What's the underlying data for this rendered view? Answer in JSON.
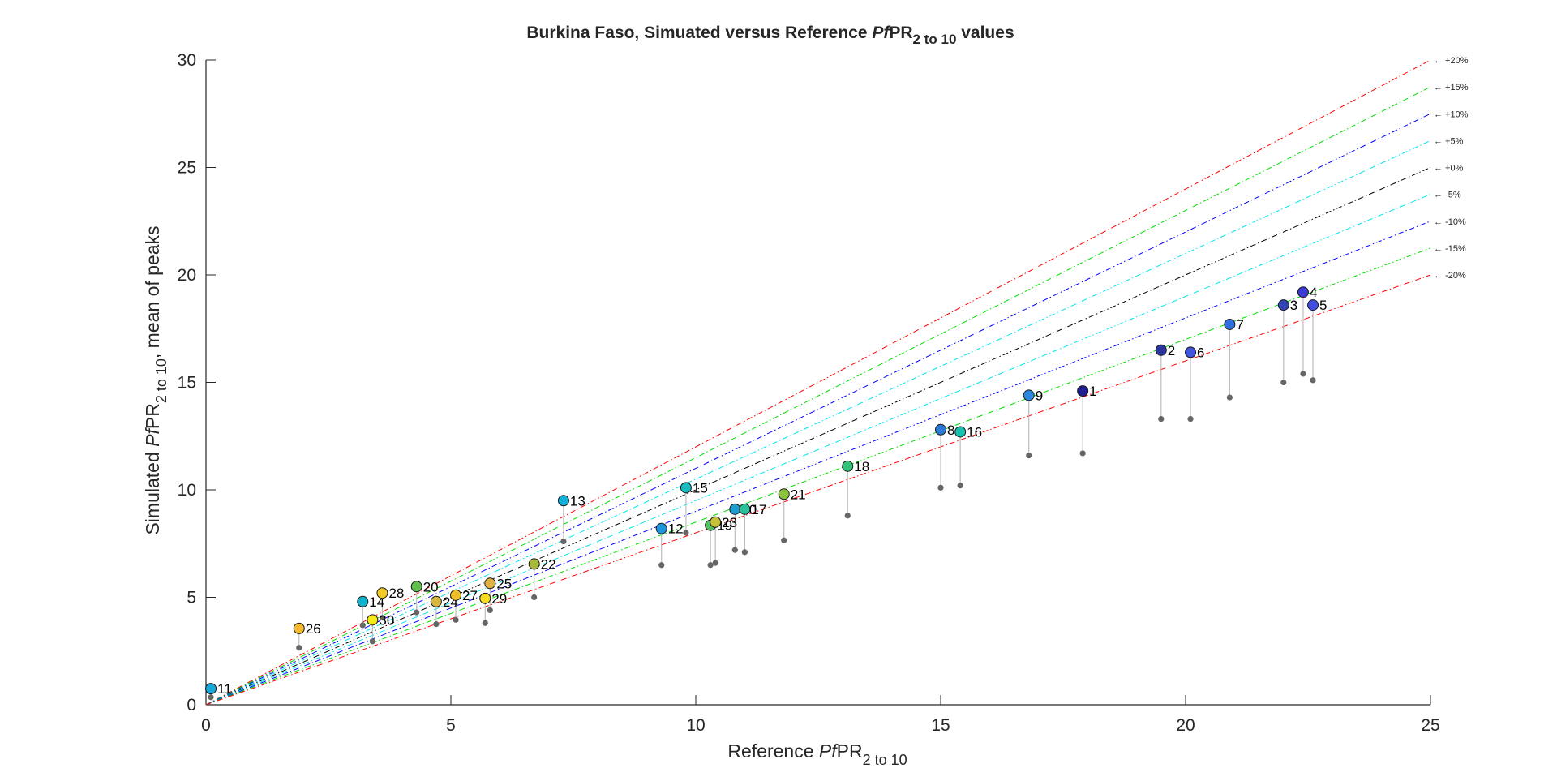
{
  "chart_data": {
    "type": "scatter",
    "title_main": "Burkina Faso, Simuated versus Reference ",
    "title_italic": "Pf",
    "title_pr": "PR",
    "title_sub": "2 to 10",
    "title_end": " values",
    "xlabel_main": "Reference  ",
    "xlabel_italic": "Pf",
    "xlabel_pr": "PR",
    "xlabel_sub": "2 to 10",
    "ylabel_main": "Simulated  ",
    "ylabel_italic": "Pf",
    "ylabel_pr": "PR",
    "ylabel_sub": "2 to 10",
    "ylabel_end": ", mean of peaks",
    "xlim": [
      0,
      25
    ],
    "ylim": [
      0,
      30
    ],
    "xticks": [
      0,
      5,
      10,
      15,
      20,
      25
    ],
    "yticks": [
      0,
      5,
      10,
      15,
      20,
      25,
      30
    ],
    "grid": false,
    "reference_lines": [
      {
        "label": "← +20%",
        "factor": 1.2,
        "color": "#ff0000"
      },
      {
        "label": "← +15%",
        "factor": 1.15,
        "color": "#00dd00"
      },
      {
        "label": "← +10%",
        "factor": 1.1,
        "color": "#0000ff"
      },
      {
        "label": "← +5%",
        "factor": 1.05,
        "color": "#00e5ee"
      },
      {
        "label": "← +0%",
        "factor": 1.0,
        "color": "#000000"
      },
      {
        "label": "← -5%",
        "factor": 0.95,
        "color": "#00e5ee"
      },
      {
        "label": "← -10%",
        "factor": 0.9,
        "color": "#0000ff"
      },
      {
        "label": "← -15%",
        "factor": 0.85,
        "color": "#00dd00"
      },
      {
        "label": "← -20%",
        "factor": 0.8,
        "color": "#ff0000"
      }
    ],
    "points": [
      {
        "id": "1",
        "x": 17.9,
        "y": 14.6,
        "y_low": 11.7,
        "color": "#1f1f8f"
      },
      {
        "id": "2",
        "x": 19.5,
        "y": 16.5,
        "y_low": 13.3,
        "color": "#2a35a0"
      },
      {
        "id": "3",
        "x": 22.0,
        "y": 18.6,
        "y_low": 15.0,
        "color": "#3344b8"
      },
      {
        "id": "4",
        "x": 22.4,
        "y": 19.2,
        "y_low": 15.4,
        "color": "#3a3ad8"
      },
      {
        "id": "5",
        "x": 22.6,
        "y": 18.6,
        "y_low": 15.1,
        "color": "#3f4ee0"
      },
      {
        "id": "6",
        "x": 20.1,
        "y": 16.4,
        "y_low": 13.3,
        "color": "#3f55dd"
      },
      {
        "id": "7",
        "x": 20.9,
        "y": 17.7,
        "y_low": 14.3,
        "color": "#2f6fe0"
      },
      {
        "id": "8",
        "x": 15.0,
        "y": 12.8,
        "y_low": 10.1,
        "color": "#2c7ad8"
      },
      {
        "id": "9",
        "x": 16.8,
        "y": 14.4,
        "y_low": 11.6,
        "color": "#2a88e0"
      },
      {
        "id": "10",
        "x": 10.8,
        "y": 9.1,
        "y_low": 7.2,
        "color": "#1e9dd0"
      },
      {
        "id": "11",
        "x": 0.1,
        "y": 0.75,
        "y_low": 0.35,
        "color": "#1aa7d8"
      },
      {
        "id": "12",
        "x": 9.3,
        "y": 8.2,
        "y_low": 6.5,
        "color": "#1e96dc"
      },
      {
        "id": "13",
        "x": 7.3,
        "y": 9.5,
        "y_low": 7.6,
        "color": "#14b0dc"
      },
      {
        "id": "14",
        "x": 3.2,
        "y": 4.8,
        "y_low": 3.7,
        "color": "#12b4cc"
      },
      {
        "id": "15",
        "x": 9.8,
        "y": 10.1,
        "y_low": 8.0,
        "color": "#16bcc0"
      },
      {
        "id": "16",
        "x": 15.4,
        "y": 12.7,
        "y_low": 10.2,
        "color": "#18c0b0"
      },
      {
        "id": "17",
        "x": 11.0,
        "y": 9.1,
        "y_low": 7.1,
        "color": "#2ac09a"
      },
      {
        "id": "18",
        "x": 13.1,
        "y": 11.1,
        "y_low": 8.8,
        "color": "#34c27a"
      },
      {
        "id": "19",
        "x": 10.3,
        "y": 8.35,
        "y_low": 6.5,
        "color": "#52c060"
      },
      {
        "id": "20",
        "x": 4.3,
        "y": 5.5,
        "y_low": 4.3,
        "color": "#5ec04a"
      },
      {
        "id": "21",
        "x": 11.8,
        "y": 9.8,
        "y_low": 7.65,
        "color": "#8cc43c"
      },
      {
        "id": "22",
        "x": 6.7,
        "y": 6.55,
        "y_low": 5.0,
        "color": "#a8b83a"
      },
      {
        "id": "23",
        "x": 10.4,
        "y": 8.5,
        "y_low": 6.6,
        "color": "#c8c23a"
      },
      {
        "id": "24",
        "x": 4.7,
        "y": 4.8,
        "y_low": 3.75,
        "color": "#d6b840"
      },
      {
        "id": "25",
        "x": 5.8,
        "y": 5.65,
        "y_low": 4.4,
        "color": "#e2b040"
      },
      {
        "id": "26",
        "x": 1.9,
        "y": 3.55,
        "y_low": 2.65,
        "color": "#f5ba2e"
      },
      {
        "id": "27",
        "x": 5.1,
        "y": 5.1,
        "y_low": 3.95,
        "color": "#f0c02a"
      },
      {
        "id": "28",
        "x": 3.6,
        "y": 5.2,
        "y_low": 4.05,
        "color": "#f2cc24"
      },
      {
        "id": "29",
        "x": 5.7,
        "y": 4.95,
        "y_low": 3.8,
        "color": "#f5dc1e"
      },
      {
        "id": "30",
        "x": 3.4,
        "y": 3.95,
        "y_low": 2.95,
        "color": "#f7ea16"
      }
    ]
  }
}
